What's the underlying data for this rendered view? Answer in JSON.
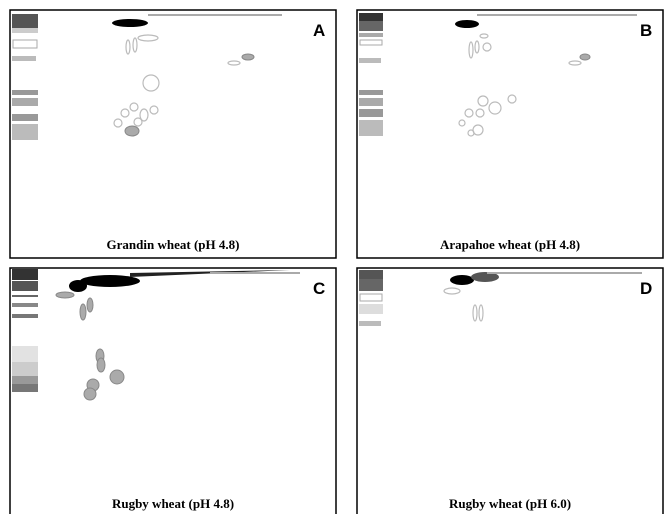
{
  "panels": [
    {
      "letter": "A",
      "caption": "Grandin wheat (pH 4.8)"
    },
    {
      "letter": "B",
      "caption": "Arapahoe wheat (pH 4.8)"
    },
    {
      "letter": "C",
      "caption": "Rugby wheat (pH 4.8)"
    },
    {
      "letter": "D",
      "caption": "Rugby wheat (pH 6.0)"
    }
  ]
}
